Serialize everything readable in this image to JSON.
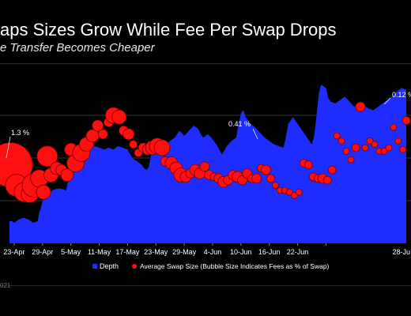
{
  "chart_data": {
    "type": "area",
    "title": "aps Sizes Grow While Fee Per Swap Drops",
    "subtitle": "e Transfer Becomes Cheaper",
    "x_ticks": [
      "23-Apr",
      "29-Apr",
      "5-May",
      "11-May",
      "17-May",
      "23-May",
      "29-May",
      "4-Jun",
      "10-Jun",
      "16-Jun",
      "22-Jun",
      "28-Ju"
    ],
    "legend": {
      "position": "bottom",
      "entries": [
        {
          "name": "Depth",
          "color": "#1f2cff",
          "marker": "square"
        },
        {
          "name": "Average Swap Size (Bubble Size Indicates Fees as % of Swap)",
          "color": "#ff1010",
          "marker": "circle"
        }
      ]
    },
    "annotations": [
      "1.3 %",
      "0.41 %",
      "0.12 %"
    ],
    "footer": "021",
    "depth": [
      [
        0,
        0.13
      ],
      [
        0.5,
        0.13
      ],
      [
        1,
        0.12
      ],
      [
        1.5,
        0.13
      ],
      [
        2,
        0.14
      ],
      [
        3,
        0.15
      ],
      [
        4,
        0.14
      ],
      [
        5,
        0.12
      ],
      [
        6,
        0.13
      ],
      [
        6.3,
        0.18
      ],
      [
        6.6,
        0.2
      ],
      [
        7,
        0.25
      ],
      [
        7.5,
        0.27
      ],
      [
        8,
        0.28
      ],
      [
        8.5,
        0.29
      ],
      [
        9,
        0.31
      ],
      [
        10,
        0.32
      ],
      [
        11,
        0.32
      ],
      [
        12,
        0.31
      ],
      [
        12.5,
        0.38
      ],
      [
        13,
        0.45
      ],
      [
        13.5,
        0.53
      ],
      [
        14,
        0.56
      ],
      [
        14.5,
        0.57
      ],
      [
        15,
        0.6
      ],
      [
        16,
        0.61
      ],
      [
        17,
        0.62
      ],
      [
        17.5,
        0.58
      ],
      [
        18,
        0.57
      ],
      [
        19,
        0.56
      ],
      [
        20,
        0.55
      ],
      [
        21,
        0.56
      ],
      [
        22,
        0.55
      ],
      [
        23,
        0.57
      ],
      [
        24,
        0.56
      ],
      [
        25,
        0.55
      ],
      [
        26,
        0.5
      ],
      [
        27,
        0.48
      ],
      [
        28,
        0.46
      ],
      [
        28.5,
        0.44
      ],
      [
        29,
        0.43
      ],
      [
        29.5,
        0.45
      ],
      [
        30,
        0.52
      ],
      [
        31,
        0.55
      ],
      [
        32,
        0.56
      ],
      [
        33,
        0.58
      ],
      [
        34,
        0.6
      ],
      [
        35,
        0.62
      ],
      [
        36,
        0.66
      ],
      [
        37,
        0.63
      ],
      [
        38,
        0.66
      ],
      [
        39,
        0.69
      ],
      [
        40,
        0.67
      ],
      [
        40.5,
        0.64
      ],
      [
        41,
        0.62
      ],
      [
        42,
        0.64
      ],
      [
        43,
        0.61
      ],
      [
        44,
        0.57
      ],
      [
        45,
        0.52
      ],
      [
        46,
        0.57
      ],
      [
        47,
        0.6
      ],
      [
        48,
        0.62
      ],
      [
        48.5,
        0.7
      ],
      [
        49,
        0.76
      ],
      [
        49.5,
        0.78
      ],
      [
        50,
        0.74
      ],
      [
        51,
        0.7
      ],
      [
        52,
        0.68
      ],
      [
        53,
        0.65
      ],
      [
        54,
        0.62
      ],
      [
        55,
        0.6
      ],
      [
        56,
        0.58
      ],
      [
        57,
        0.57
      ],
      [
        58,
        0.56
      ],
      [
        58.5,
        0.62
      ],
      [
        59,
        0.7
      ],
      [
        59.5,
        0.72
      ],
      [
        60,
        0.74
      ],
      [
        61,
        0.7
      ],
      [
        62,
        0.66
      ],
      [
        63,
        0.62
      ],
      [
        64,
        0.58
      ],
      [
        64.5,
        0.63
      ],
      [
        65,
        0.75
      ],
      [
        65.5,
        0.88
      ],
      [
        66,
        0.93
      ],
      [
        67,
        0.91
      ],
      [
        67.5,
        0.85
      ],
      [
        68,
        0.83
      ],
      [
        69,
        0.82
      ],
      [
        70,
        0.84
      ],
      [
        71,
        0.86
      ],
      [
        72,
        0.83
      ],
      [
        73,
        0.8
      ],
      [
        74,
        0.82
      ],
      [
        75,
        0.81
      ],
      [
        76,
        0.79
      ],
      [
        77,
        0.78
      ],
      [
        78,
        0.8
      ],
      [
        79,
        0.82
      ],
      [
        80,
        0.84
      ],
      [
        81,
        0.86
      ],
      [
        82,
        0.89
      ],
      [
        83,
        0.91
      ],
      [
        84,
        0.9
      ]
    ],
    "swaps": [
      {
        "x": 0.2,
        "y": 0.46,
        "r": 28
      },
      {
        "x": 1.5,
        "y": 0.34,
        "r": 14
      },
      {
        "x": 3.0,
        "y": 0.3,
        "r": 12
      },
      {
        "x": 4.3,
        "y": 0.29,
        "r": 11
      },
      {
        "x": 5.2,
        "y": 0.34,
        "r": 15
      },
      {
        "x": 6.3,
        "y": 0.38,
        "r": 11
      },
      {
        "x": 7.2,
        "y": 0.3,
        "r": 9
      },
      {
        "x": 8.0,
        "y": 0.51,
        "r": 13
      },
      {
        "x": 8.8,
        "y": 0.4,
        "r": 9
      },
      {
        "x": 10.0,
        "y": 0.44,
        "r": 8
      },
      {
        "x": 11.0,
        "y": 0.43,
        "r": 7
      },
      {
        "x": 12.2,
        "y": 0.4,
        "r": 8
      },
      {
        "x": 13.0,
        "y": 0.55,
        "r": 8
      },
      {
        "x": 14.0,
        "y": 0.47,
        "r": 11
      },
      {
        "x": 15.2,
        "y": 0.53,
        "r": 11
      },
      {
        "x": 16.3,
        "y": 0.58,
        "r": 9
      },
      {
        "x": 17.6,
        "y": 0.63,
        "r": 8
      },
      {
        "x": 18.7,
        "y": 0.69,
        "r": 7
      },
      {
        "x": 19.8,
        "y": 0.64,
        "r": 6
      },
      {
        "x": 21.0,
        "y": 0.71,
        "r": 6
      },
      {
        "x": 22.0,
        "y": 0.75,
        "r": 10
      },
      {
        "x": 23.2,
        "y": 0.74,
        "r": 9
      },
      {
        "x": 24.2,
        "y": 0.66,
        "r": 6
      },
      {
        "x": 25.2,
        "y": 0.64,
        "r": 7
      },
      {
        "x": 26.2,
        "y": 0.58,
        "r": 5
      },
      {
        "x": 27.3,
        "y": 0.53,
        "r": 5
      },
      {
        "x": 28.3,
        "y": 0.56,
        "r": 6
      },
      {
        "x": 29.3,
        "y": 0.55,
        "r": 7
      },
      {
        "x": 30.3,
        "y": 0.56,
        "r": 9
      },
      {
        "x": 31.3,
        "y": 0.57,
        "r": 10
      },
      {
        "x": 32.3,
        "y": 0.56,
        "r": 10
      },
      {
        "x": 33.0,
        "y": 0.48,
        "r": 6
      },
      {
        "x": 34.3,
        "y": 0.47,
        "r": 8
      },
      {
        "x": 35.3,
        "y": 0.44,
        "r": 8
      },
      {
        "x": 36.3,
        "y": 0.4,
        "r": 9
      },
      {
        "x": 37.3,
        "y": 0.39,
        "r": 7
      },
      {
        "x": 38.3,
        "y": 0.41,
        "r": 6
      },
      {
        "x": 39.3,
        "y": 0.43,
        "r": 7
      },
      {
        "x": 40.3,
        "y": 0.41,
        "r": 7
      },
      {
        "x": 41.3,
        "y": 0.45,
        "r": 6
      },
      {
        "x": 42.3,
        "y": 0.4,
        "r": 6
      },
      {
        "x": 43.3,
        "y": 0.39,
        "r": 5
      },
      {
        "x": 44.3,
        "y": 0.38,
        "r": 6
      },
      {
        "x": 45.3,
        "y": 0.36,
        "r": 7
      },
      {
        "x": 46.3,
        "y": 0.37,
        "r": 6
      },
      {
        "x": 47.3,
        "y": 0.4,
        "r": 6
      },
      {
        "x": 48.3,
        "y": 0.39,
        "r": 7
      },
      {
        "x": 49.3,
        "y": 0.37,
        "r": 6
      },
      {
        "x": 50.3,
        "y": 0.41,
        "r": 6
      },
      {
        "x": 51.3,
        "y": 0.38,
        "r": 5
      },
      {
        "x": 52.3,
        "y": 0.38,
        "r": 6
      },
      {
        "x": 53.3,
        "y": 0.44,
        "r": 5
      },
      {
        "x": 54.3,
        "y": 0.43,
        "r": 6
      },
      {
        "x": 55.3,
        "y": 0.38,
        "r": 5
      },
      {
        "x": 56.3,
        "y": 0.34,
        "r": 4
      },
      {
        "x": 57.3,
        "y": 0.31,
        "r": 4
      },
      {
        "x": 58.3,
        "y": 0.31,
        "r": 4
      },
      {
        "x": 59.3,
        "y": 0.3,
        "r": 4
      },
      {
        "x": 60.3,
        "y": 0.28,
        "r": 4
      },
      {
        "x": 61.3,
        "y": 0.3,
        "r": 4
      },
      {
        "x": 62.3,
        "y": 0.47,
        "r": 5
      },
      {
        "x": 63.3,
        "y": 0.46,
        "r": 5
      },
      {
        "x": 64.3,
        "y": 0.39,
        "r": 5
      },
      {
        "x": 65.3,
        "y": 0.38,
        "r": 5
      },
      {
        "x": 66.3,
        "y": 0.38,
        "r": 6
      },
      {
        "x": 67.3,
        "y": 0.37,
        "r": 5
      },
      {
        "x": 68.3,
        "y": 0.43,
        "r": 5
      },
      {
        "x": 69.3,
        "y": 0.63,
        "r": 4
      },
      {
        "x": 70.3,
        "y": 0.6,
        "r": 4
      },
      {
        "x": 71.3,
        "y": 0.54,
        "r": 4
      },
      {
        "x": 72.3,
        "y": 0.49,
        "r": 4
      },
      {
        "x": 73.3,
        "y": 0.56,
        "r": 5
      },
      {
        "x": 74.3,
        "y": 0.8,
        "r": 6
      },
      {
        "x": 75.3,
        "y": 0.56,
        "r": 4
      },
      {
        "x": 76.3,
        "y": 0.6,
        "r": 4
      },
      {
        "x": 77.3,
        "y": 0.58,
        "r": 4
      },
      {
        "x": 78.3,
        "y": 0.54,
        "r": 4
      },
      {
        "x": 79.3,
        "y": 0.54,
        "r": 4
      },
      {
        "x": 80.3,
        "y": 0.56,
        "r": 4
      },
      {
        "x": 81.3,
        "y": 0.68,
        "r": 4
      },
      {
        "x": 82.3,
        "y": 0.6,
        "r": 4
      },
      {
        "x": 83.3,
        "y": 0.55,
        "r": 4
      },
      {
        "x": 84.0,
        "y": 0.72,
        "r": 5
      }
    ]
  }
}
